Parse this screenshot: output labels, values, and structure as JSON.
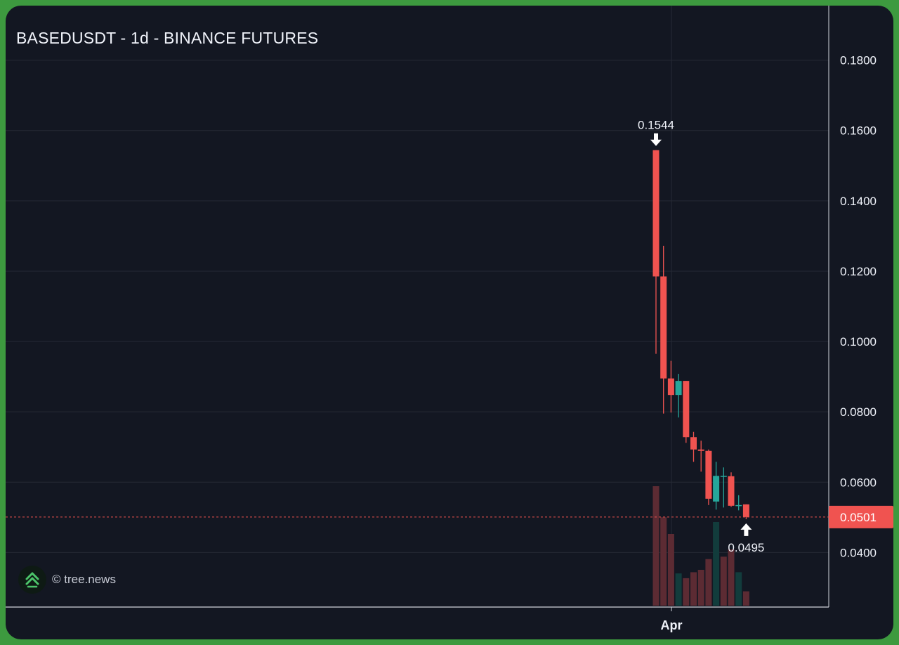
{
  "header": {
    "title": "BASEDUSDT - 1d - BINANCE FUTURES"
  },
  "watermark": {
    "text": "© tree.news",
    "icon": "double-chevron-up-icon"
  },
  "colors": {
    "background": "#131722",
    "frame": "#3d9a3f",
    "down": "#f05350",
    "up": "#26a69a",
    "volume_down": "#5c2b33",
    "volume_up": "#123c3c",
    "grid": "#262a35",
    "text": "#f0f3fa"
  },
  "chart_data": {
    "type": "candlestick",
    "title": "BASEDUSDT - 1d - BINANCE FUTURES",
    "x_tick_labels": [
      "Apr"
    ],
    "y_ticks": [
      "0.1800",
      "0.1600",
      "0.1400",
      "0.1200",
      "0.1000",
      "0.0800",
      "0.0600",
      "0.0400"
    ],
    "ylim": [
      0.0245,
      0.1955
    ],
    "grid": true,
    "last_price_label": "0.0501",
    "last_price": 0.0501,
    "annotations": [
      {
        "text": "0.1544",
        "kind": "high",
        "candle_index": 0,
        "value": 0.1544
      },
      {
        "text": "0.0495",
        "kind": "low",
        "candle_index": 12,
        "value": 0.0495
      }
    ],
    "candles": [
      {
        "open": 0.1544,
        "high": 0.1544,
        "low": 0.0965,
        "close": 0.1185
      },
      {
        "open": 0.1185,
        "high": 0.1272,
        "low": 0.0795,
        "close": 0.0895
      },
      {
        "open": 0.0895,
        "high": 0.0945,
        "low": 0.0798,
        "close": 0.0848
      },
      {
        "open": 0.0848,
        "high": 0.0908,
        "low": 0.0784,
        "close": 0.0888
      },
      {
        "open": 0.0888,
        "high": 0.0888,
        "low": 0.0712,
        "close": 0.0728
      },
      {
        "open": 0.0728,
        "high": 0.0743,
        "low": 0.0658,
        "close": 0.0693
      },
      {
        "open": 0.0693,
        "high": 0.0718,
        "low": 0.063,
        "close": 0.0689
      },
      {
        "open": 0.0689,
        "high": 0.0693,
        "low": 0.0535,
        "close": 0.0553
      },
      {
        "open": 0.0545,
        "high": 0.0658,
        "low": 0.0522,
        "close": 0.0618
      },
      {
        "open": 0.0618,
        "high": 0.0642,
        "low": 0.0528,
        "close": 0.0618
      },
      {
        "open": 0.0617,
        "high": 0.0628,
        "low": 0.053,
        "close": 0.0533
      },
      {
        "open": 0.0533,
        "high": 0.0563,
        "low": 0.052,
        "close": 0.0535
      },
      {
        "open": 0.0537,
        "high": 0.0537,
        "low": 0.0495,
        "close": 0.0501
      }
    ],
    "volume": [
      {
        "value": 100,
        "direction": "down"
      },
      {
        "value": 74,
        "direction": "down"
      },
      {
        "value": 60,
        "direction": "down"
      },
      {
        "value": 27,
        "direction": "up"
      },
      {
        "value": 23,
        "direction": "down"
      },
      {
        "value": 28,
        "direction": "down"
      },
      {
        "value": 30,
        "direction": "down"
      },
      {
        "value": 39,
        "direction": "down"
      },
      {
        "value": 70,
        "direction": "up"
      },
      {
        "value": 41,
        "direction": "down"
      },
      {
        "value": 47,
        "direction": "down"
      },
      {
        "value": 28,
        "direction": "up"
      },
      {
        "value": 12,
        "direction": "down"
      }
    ]
  }
}
